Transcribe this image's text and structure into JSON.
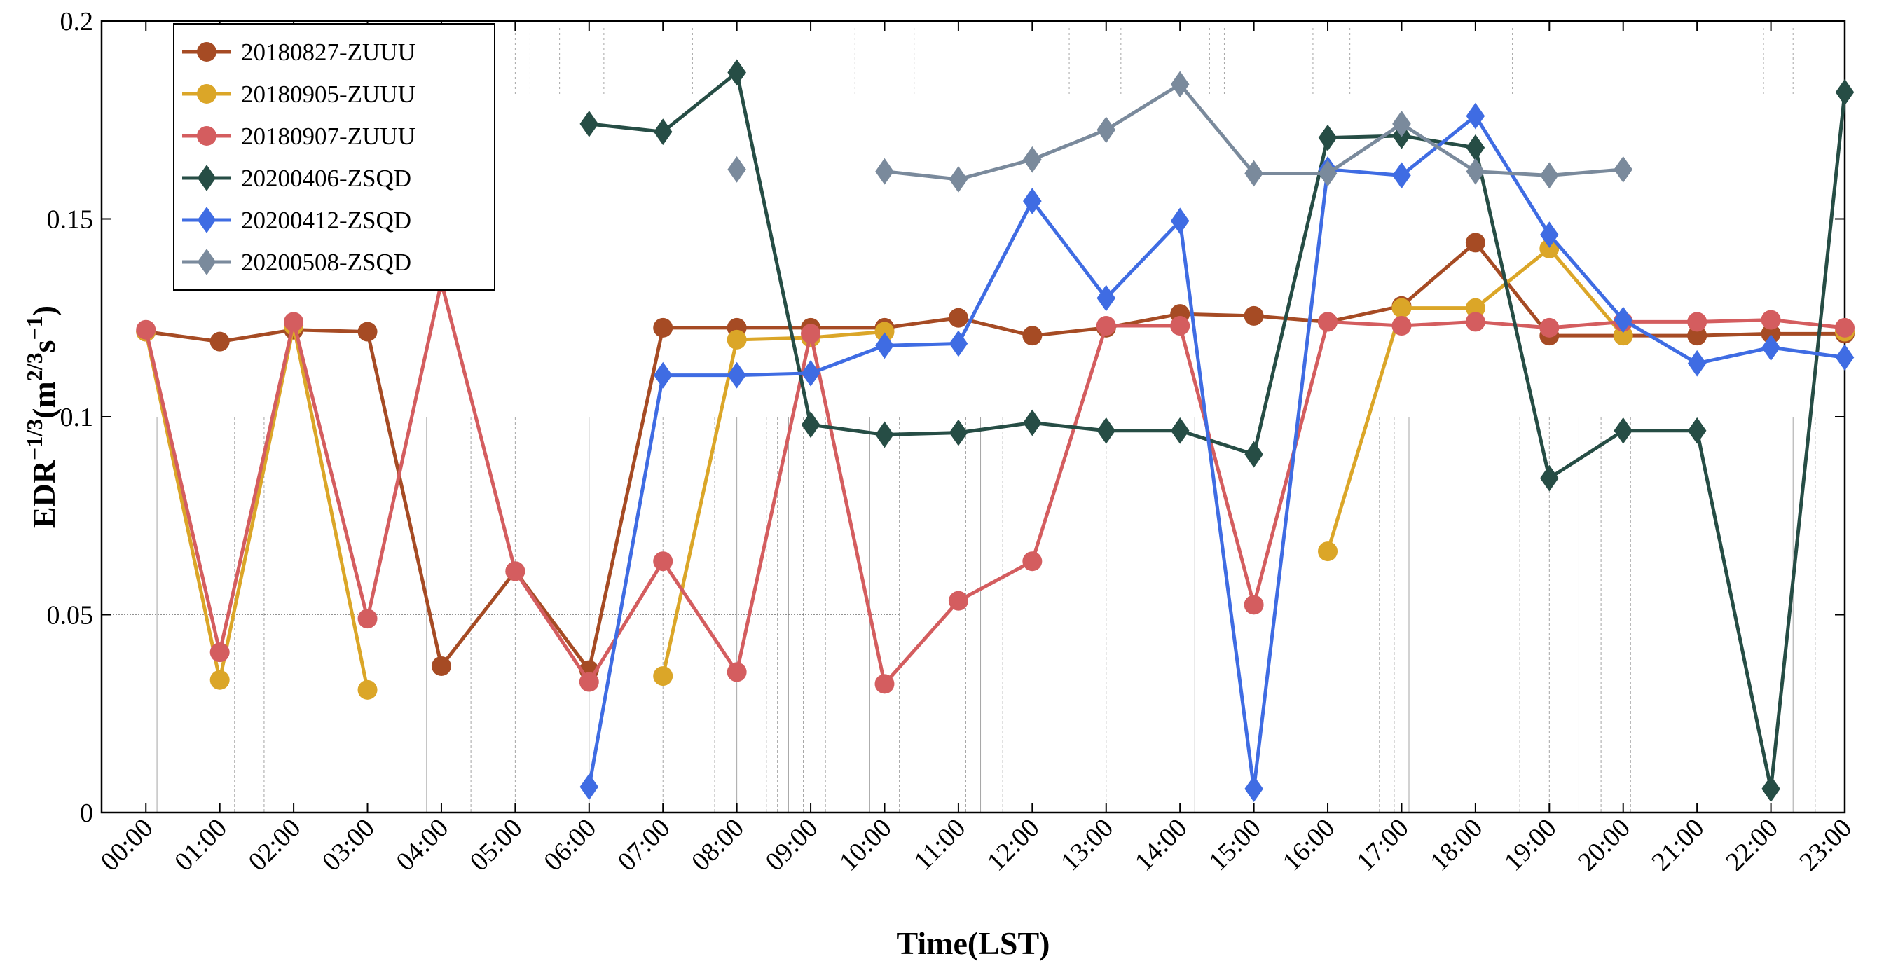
{
  "chart_data": {
    "type": "line",
    "title": "",
    "xlabel": "Time(LST)",
    "ylabel_main": "EDR",
    "ylabel_main_exp": "−1/3",
    "ylabel_unit_open": "(m",
    "ylabel_unit_exp1": "2/3",
    "ylabel_unit_mid": "s",
    "ylabel_unit_exp2": "−1",
    "ylabel_unit_close": ")",
    "categories": [
      "00:00",
      "01:00",
      "02:00",
      "03:00",
      "04:00",
      "05:00",
      "06:00",
      "07:00",
      "08:00",
      "09:00",
      "10:00",
      "11:00",
      "12:00",
      "13:00",
      "14:00",
      "15:00",
      "16:00",
      "17:00",
      "18:00",
      "19:00",
      "20:00",
      "21:00",
      "22:00",
      "23:00"
    ],
    "xlim": [
      -0.6,
      23
    ],
    "ylim": [
      0,
      0.2
    ],
    "yticks": [
      0,
      0.05,
      0.1,
      0.15,
      0.2
    ],
    "ytick_labels": [
      "0",
      "0.05",
      "0.1",
      "0.15",
      "0.2"
    ],
    "legend_position": "top-left",
    "series": [
      {
        "name": "20180827-ZUUU",
        "marker": "circle",
        "color": "#A64B24",
        "values": [
          0.1215,
          0.119,
          0.122,
          0.1215,
          0.037,
          0.061,
          0.036,
          0.1225,
          0.1225,
          0.1225,
          0.1225,
          0.125,
          0.1205,
          0.1225,
          0.126,
          0.1255,
          0.124,
          0.128,
          0.144,
          0.1205,
          0.1205,
          0.1205,
          0.121,
          0.121
        ]
      },
      {
        "name": "20180905-ZUUU",
        "marker": "circle",
        "color": "#DBA628",
        "values": [
          0.1215,
          0.0335,
          0.123,
          0.031,
          null,
          null,
          null,
          0.0345,
          0.1195,
          0.12,
          0.1215,
          null,
          null,
          null,
          null,
          null,
          0.066,
          0.1275,
          0.1275,
          0.1425,
          0.1205,
          null,
          null,
          0.1215
        ]
      },
      {
        "name": "20180907-ZUUU",
        "marker": "circle",
        "color": "#D45D5F",
        "values": [
          0.122,
          0.0405,
          0.124,
          0.049,
          0.134,
          0.061,
          0.033,
          0.0635,
          0.0355,
          0.121,
          0.0325,
          0.0535,
          0.0635,
          0.123,
          0.123,
          0.0525,
          0.124,
          0.123,
          0.124,
          0.1225,
          0.124,
          0.124,
          0.1245,
          0.1225
        ]
      },
      {
        "name": "20200406-ZSQD",
        "marker": "diamond",
        "color": "#264D45",
        "values": [
          null,
          null,
          null,
          null,
          null,
          null,
          0.174,
          0.172,
          0.187,
          0.098,
          0.0955,
          0.096,
          0.0985,
          0.0965,
          0.0965,
          0.0905,
          0.1705,
          0.171,
          0.168,
          0.0845,
          0.0965,
          0.0965,
          0.006,
          0.182
        ]
      },
      {
        "name": "20200412-ZSQD",
        "marker": "diamond",
        "color": "#3F6CE3",
        "values": [
          null,
          null,
          null,
          null,
          null,
          null,
          0.0065,
          0.1105,
          0.1105,
          0.111,
          0.118,
          0.1185,
          0.1545,
          0.13,
          0.1495,
          0.006,
          0.1625,
          0.161,
          0.176,
          0.146,
          0.1245,
          0.1135,
          0.1175,
          0.115
        ]
      },
      {
        "name": "20200508-ZSQD",
        "marker": "diamond",
        "color": "#7A8A9C",
        "values": [
          null,
          null,
          null,
          null,
          null,
          null,
          null,
          null,
          0.1625,
          null,
          0.162,
          0.16,
          0.165,
          0.1725,
          0.184,
          0.1615,
          0.1615,
          0.174,
          0.162,
          0.161,
          0.1625,
          null,
          null,
          null
        ]
      }
    ]
  }
}
